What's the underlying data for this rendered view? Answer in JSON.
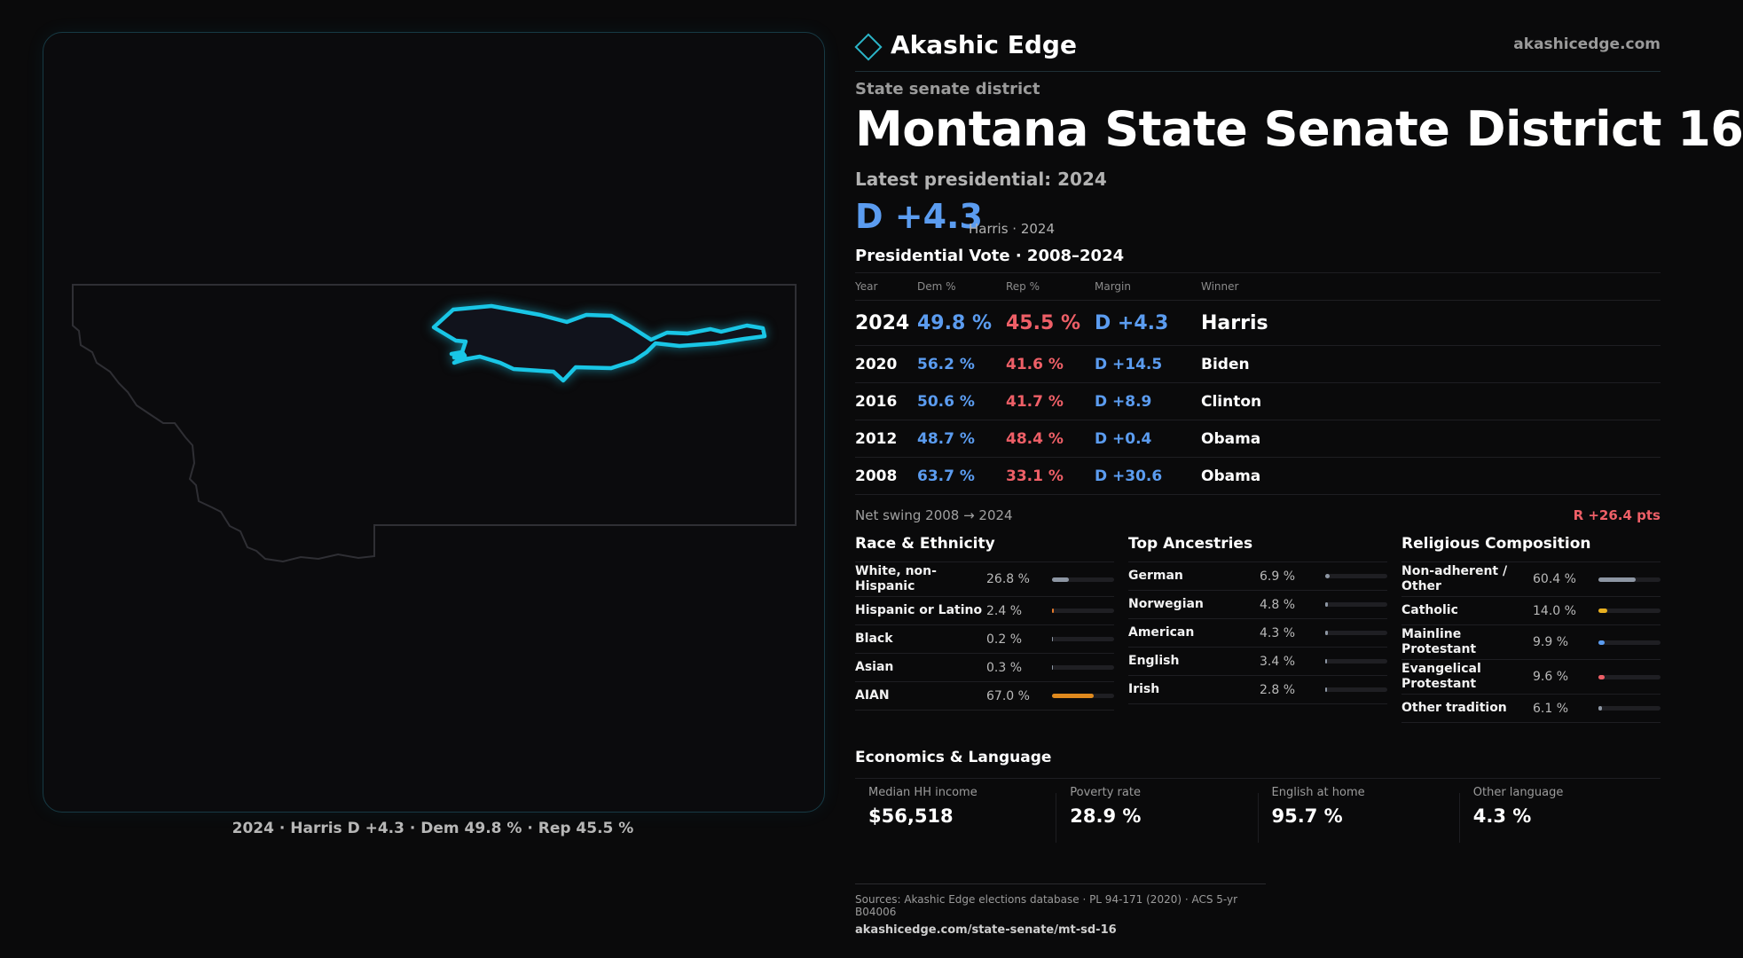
{
  "brand": {
    "name": "Akashic Edge",
    "site": "akashicedge.com"
  },
  "map": {
    "caption": "2024 · Harris D +4.3 · Dem 49.8 % · Rep 45.5 %",
    "highlight_color": "#19c6e6"
  },
  "header": {
    "kicker": "State senate district",
    "title": "Montana State Senate District 16",
    "latest": "Latest presidential: 2024",
    "margin": "D +4.3",
    "margin_sub": "Harris · 2024"
  },
  "votes": {
    "title": "Presidential Vote · 2008–2024",
    "columns": [
      "Year",
      "Dem %",
      "Rep %",
      "Margin",
      "Winner"
    ],
    "rows": [
      {
        "year": "2024",
        "dem": "49.8 %",
        "rep": "45.5 %",
        "margin": "D +4.3",
        "winner": "Harris"
      },
      {
        "year": "2020",
        "dem": "56.2 %",
        "rep": "41.6 %",
        "margin": "D +14.5",
        "winner": "Biden"
      },
      {
        "year": "2016",
        "dem": "50.6 %",
        "rep": "41.7 %",
        "margin": "D +8.9",
        "winner": "Clinton"
      },
      {
        "year": "2012",
        "dem": "48.7 %",
        "rep": "48.4 %",
        "margin": "D +0.4",
        "winner": "Obama"
      },
      {
        "year": "2008",
        "dem": "63.7 %",
        "rep": "33.1 %",
        "margin": "D +30.6",
        "winner": "Obama"
      }
    ],
    "swing_label": "Net swing 2008 → 2024",
    "swing_value": "R +26.4 pts"
  },
  "race": {
    "title": "Race & Ethnicity",
    "items": [
      {
        "label": "White, non-Hispanic",
        "value": "26.8 %",
        "share": 0.268,
        "color": "#8d96a3"
      },
      {
        "label": "Hispanic or Latino",
        "value": "2.4 %",
        "share": 0.024,
        "color": "#e57a2c"
      },
      {
        "label": "Black",
        "value": "0.2 %",
        "share": 0.002,
        "color": "#8d96a3"
      },
      {
        "label": "Asian",
        "value": "0.3 %",
        "share": 0.003,
        "color": "#8d96a3"
      },
      {
        "label": "AIAN",
        "value": "67.0 %",
        "share": 0.67,
        "color": "#e08a1e"
      }
    ]
  },
  "ancestry": {
    "title": "Top Ancestries",
    "items": [
      {
        "label": "German",
        "value": "6.9 %",
        "share": 0.069,
        "color": "#8d96a3"
      },
      {
        "label": "Norwegian",
        "value": "4.8 %",
        "share": 0.048,
        "color": "#8d96a3"
      },
      {
        "label": "American",
        "value": "4.3 %",
        "share": 0.043,
        "color": "#8d96a3"
      },
      {
        "label": "English",
        "value": "3.4 %",
        "share": 0.034,
        "color": "#8d96a3"
      },
      {
        "label": "Irish",
        "value": "2.8 %",
        "share": 0.028,
        "color": "#8d96a3"
      }
    ]
  },
  "religion": {
    "title": "Religious Composition",
    "items": [
      {
        "label": "Non-adherent / Other",
        "value": "60.4 %",
        "share": 0.604,
        "color": "#8d96a3"
      },
      {
        "label": "Catholic",
        "value": "14.0 %",
        "share": 0.14,
        "color": "#e8b020"
      },
      {
        "label": "Mainline Protestant",
        "value": "9.9 %",
        "share": 0.099,
        "color": "#5b9cf0"
      },
      {
        "label": "Evangelical Protestant",
        "value": "9.6 %",
        "share": 0.096,
        "color": "#ee5f67"
      },
      {
        "label": "Other tradition",
        "value": "6.1 %",
        "share": 0.061,
        "color": "#8d96a3"
      }
    ]
  },
  "economics": {
    "title": "Economics & Language",
    "cells": [
      {
        "key": "Median HH income",
        "value": "$56,518"
      },
      {
        "key": "Poverty rate",
        "value": "28.9 %"
      },
      {
        "key": "English at home",
        "value": "95.7 %"
      },
      {
        "key": "Other language",
        "value": "4.3 %"
      }
    ]
  },
  "footer": {
    "sources": "Sources: Akashic Edge elections database · PL 94-171 (2020) · ACS 5-yr B04006",
    "url": "akashicedge.com/state-senate/mt-sd-16"
  }
}
